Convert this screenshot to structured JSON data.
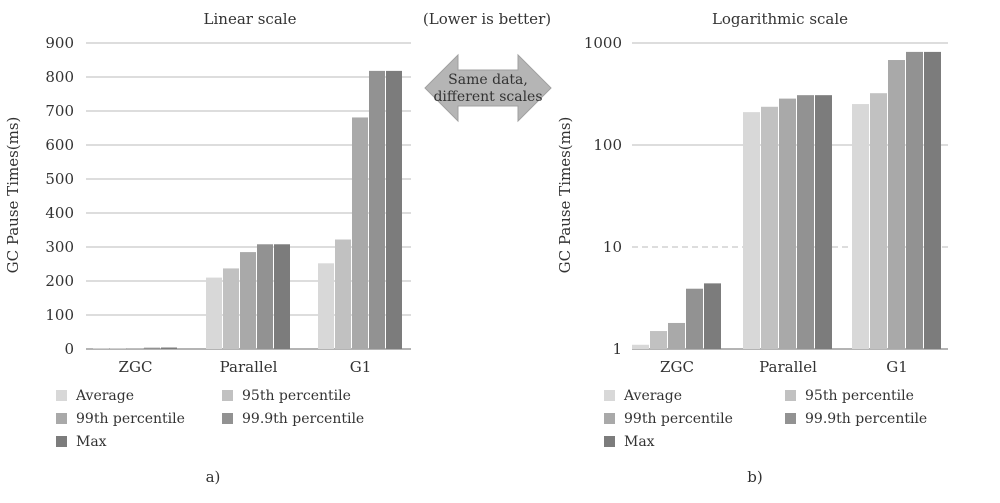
{
  "center": {
    "note": "(Lower is better)",
    "arrow_line1": "Same data,",
    "arrow_line2": "different scales"
  },
  "series_colors": [
    "#d8d8d8",
    "#c1c1c1",
    "#a9a9a9",
    "#929292",
    "#7c7c7c"
  ],
  "chart_data": [
    {
      "type": "bar",
      "title": "Linear scale",
      "panel_label": "a)",
      "ylabel": "GC Pause Times(ms)",
      "xlabel": "",
      "scale": "linear",
      "ylim": [
        0,
        900
      ],
      "yticks": [
        "0",
        "100",
        "200",
        "300",
        "400",
        "500",
        "600",
        "700",
        "800",
        "900"
      ],
      "ytick_values": [
        0,
        100,
        200,
        300,
        400,
        500,
        600,
        700,
        800,
        900
      ],
      "grid": true,
      "legend_position": "bottom",
      "categories": [
        "ZGC",
        "Parallel",
        "G1"
      ],
      "series": [
        {
          "name": "Average",
          "values": [
            1.1,
            210,
            252
          ]
        },
        {
          "name": "95th percentile",
          "values": [
            1.5,
            237,
            322
          ]
        },
        {
          "name": "99th percentile",
          "values": [
            1.8,
            285,
            681
          ]
        },
        {
          "name": "99.9th percentile",
          "values": [
            3.9,
            308,
            818
          ]
        },
        {
          "name": "Max",
          "values": [
            4.4,
            308,
            818
          ]
        }
      ]
    },
    {
      "type": "bar",
      "title": "Logarithmic scale",
      "panel_label": "b)",
      "ylabel": "GC Pause Times(ms)",
      "xlabel": "",
      "scale": "log",
      "ylim": [
        1,
        1000
      ],
      "yticks": [
        "1",
        "10",
        "100",
        "1000"
      ],
      "ytick_values": [
        1,
        10,
        100,
        1000
      ],
      "grid": true,
      "legend_position": "bottom",
      "categories": [
        "ZGC",
        "Parallel",
        "G1"
      ],
      "series": [
        {
          "name": "Average",
          "values": [
            1.1,
            210,
            252
          ]
        },
        {
          "name": "95th percentile",
          "values": [
            1.5,
            237,
            322
          ]
        },
        {
          "name": "99th percentile",
          "values": [
            1.8,
            285,
            681
          ]
        },
        {
          "name": "99.9th percentile",
          "values": [
            3.9,
            308,
            818
          ]
        },
        {
          "name": "Max",
          "values": [
            4.4,
            308,
            818
          ]
        }
      ]
    }
  ]
}
